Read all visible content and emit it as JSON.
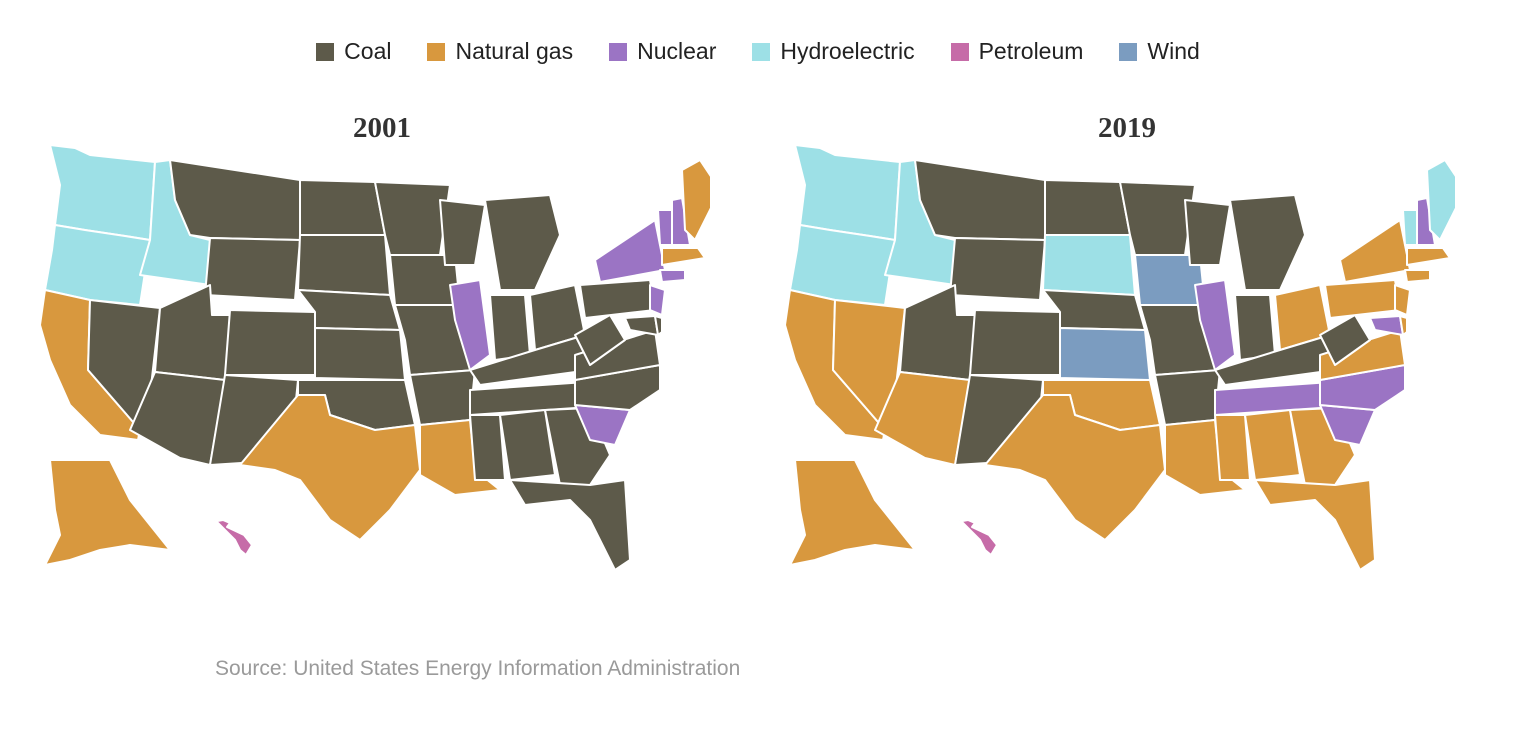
{
  "legend": [
    {
      "label": "Coal",
      "color": "#5d5a4a"
    },
    {
      "label": "Natural gas",
      "color": "#d8983e"
    },
    {
      "label": "Nuclear",
      "color": "#9b74c4"
    },
    {
      "label": "Hydroelectric",
      "color": "#9de0e6"
    },
    {
      "label": "Petroleum",
      "color": "#c66ca8"
    },
    {
      "label": "Wind",
      "color": "#7b9cc0"
    }
  ],
  "maps": [
    {
      "title": "2001",
      "states": {
        "WA": "Hydroelectric",
        "OR": "Hydroelectric",
        "ID": "Hydroelectric",
        "CA": "Natural gas",
        "NV": "Coal",
        "MT": "Coal",
        "WY": "Coal",
        "UT": "Coal",
        "CO": "Coal",
        "AZ": "Coal",
        "NM": "Coal",
        "ND": "Coal",
        "SD": "Coal",
        "NE": "Coal",
        "KS": "Coal",
        "OK": "Coal",
        "TX": "Natural gas",
        "MN": "Coal",
        "IA": "Coal",
        "MO": "Coal",
        "AR": "Coal",
        "LA": "Natural gas",
        "WI": "Coal",
        "IL": "Nuclear",
        "MI": "Coal",
        "IN": "Coal",
        "OH": "Coal",
        "KY": "Coal",
        "TN": "Coal",
        "MS": "Coal",
        "AL": "Coal",
        "GA": "Coal",
        "FL": "Coal",
        "SC": "Nuclear",
        "NC": "Coal",
        "VA": "Coal",
        "WV": "Coal",
        "PA": "Coal",
        "NY": "Nuclear",
        "NJ": "Nuclear",
        "MD": "Coal",
        "DE": "Coal",
        "CT": "Nuclear",
        "VT": "Nuclear",
        "NH": "Nuclear",
        "MA": "Natural gas",
        "ME": "Natural gas",
        "AK": "Natural gas",
        "HI": "Petroleum"
      }
    },
    {
      "title": "2019",
      "states": {
        "WA": "Hydroelectric",
        "OR": "Hydroelectric",
        "ID": "Hydroelectric",
        "CA": "Natural gas",
        "NV": "Natural gas",
        "MT": "Coal",
        "WY": "Coal",
        "UT": "Coal",
        "CO": "Coal",
        "AZ": "Natural gas",
        "NM": "Coal",
        "ND": "Coal",
        "SD": "Hydroelectric",
        "NE": "Coal",
        "KS": "Wind",
        "OK": "Natural gas",
        "TX": "Natural gas",
        "MN": "Coal",
        "IA": "Wind",
        "MO": "Coal",
        "AR": "Coal",
        "LA": "Natural gas",
        "WI": "Coal",
        "IL": "Nuclear",
        "MI": "Coal",
        "IN": "Coal",
        "OH": "Natural gas",
        "KY": "Coal",
        "TN": "Nuclear",
        "MS": "Natural gas",
        "AL": "Natural gas",
        "GA": "Natural gas",
        "FL": "Natural gas",
        "SC": "Nuclear",
        "NC": "Nuclear",
        "VA": "Natural gas",
        "WV": "Coal",
        "PA": "Natural gas",
        "NY": "Natural gas",
        "NJ": "Natural gas",
        "MD": "Nuclear",
        "DE": "Natural gas",
        "CT": "Natural gas",
        "VT": "Hydroelectric",
        "NH": "Nuclear",
        "MA": "Natural gas",
        "ME": "Hydroelectric",
        "AK": "Natural gas",
        "HI": "Petroleum"
      }
    }
  ],
  "source": "Source: United States Energy Information Administration"
}
